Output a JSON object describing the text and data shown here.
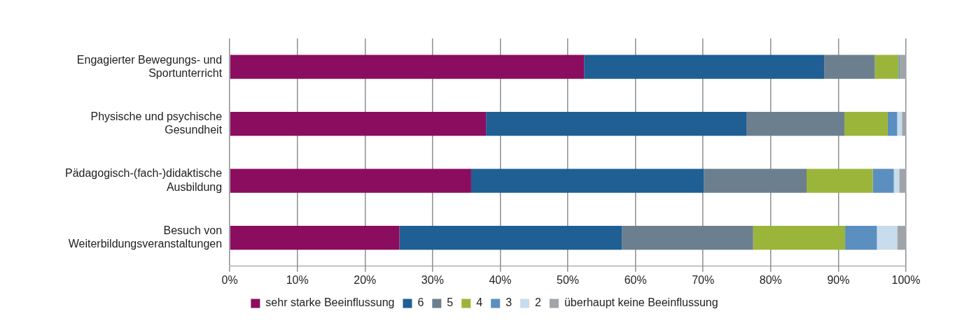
{
  "chart_data": {
    "type": "bar",
    "orientation": "horizontal",
    "stacked": true,
    "categories": [
      "Engagierter Bewegungs- und\nSportunterricht",
      "Physische und psychische\nGesundheit",
      "Pädagogisch-(fach-)didaktische\nAusbildung",
      "Besuch von\nWeiterbildungsveranstaltungen"
    ],
    "series": [
      {
        "name": "sehr starke Beeinflussung",
        "color": "#8b0d5f",
        "values": [
          52.4,
          37.9,
          35.7,
          25.1
        ]
      },
      {
        "name": "6",
        "color": "#1f5f93",
        "values": [
          35.5,
          38.5,
          34.4,
          32.9
        ]
      },
      {
        "name": "5",
        "color": "#6b7f8f",
        "values": [
          7.5,
          14.5,
          15.2,
          19.4
        ]
      },
      {
        "name": "4",
        "color": "#9bb53a",
        "values": [
          3.5,
          6.4,
          9.8,
          13.6
        ]
      },
      {
        "name": "3",
        "color": "#5b8fc0",
        "values": [
          0.2,
          1.4,
          3.1,
          4.7
        ]
      },
      {
        "name": "2",
        "color": "#c7dcec",
        "values": [
          0,
          0.7,
          0.8,
          3.0
        ]
      },
      {
        "name": "überhaupt keine Beeinflussung",
        "color": "#a0a4a8",
        "values": [
          0.9,
          0.6,
          1.0,
          1.3
        ]
      }
    ],
    "xlim": [
      0,
      100
    ],
    "xticks": [
      {
        "value": 0,
        "label": "0%"
      },
      {
        "value": 10,
        "label": "10%"
      },
      {
        "value": 20,
        "label": "20%"
      },
      {
        "value": 30,
        "label": "30%"
      },
      {
        "value": 40,
        "label": "40%"
      },
      {
        "value": 50,
        "label": "50%"
      },
      {
        "value": 60,
        "label": "60%"
      },
      {
        "value": 70,
        "label": "70%"
      },
      {
        "value": 80,
        "label": "80%"
      },
      {
        "value": 90,
        "label": "90%"
      },
      {
        "value": 100,
        "label": "100%"
      }
    ],
    "grid": "x",
    "legend": "bottom"
  }
}
